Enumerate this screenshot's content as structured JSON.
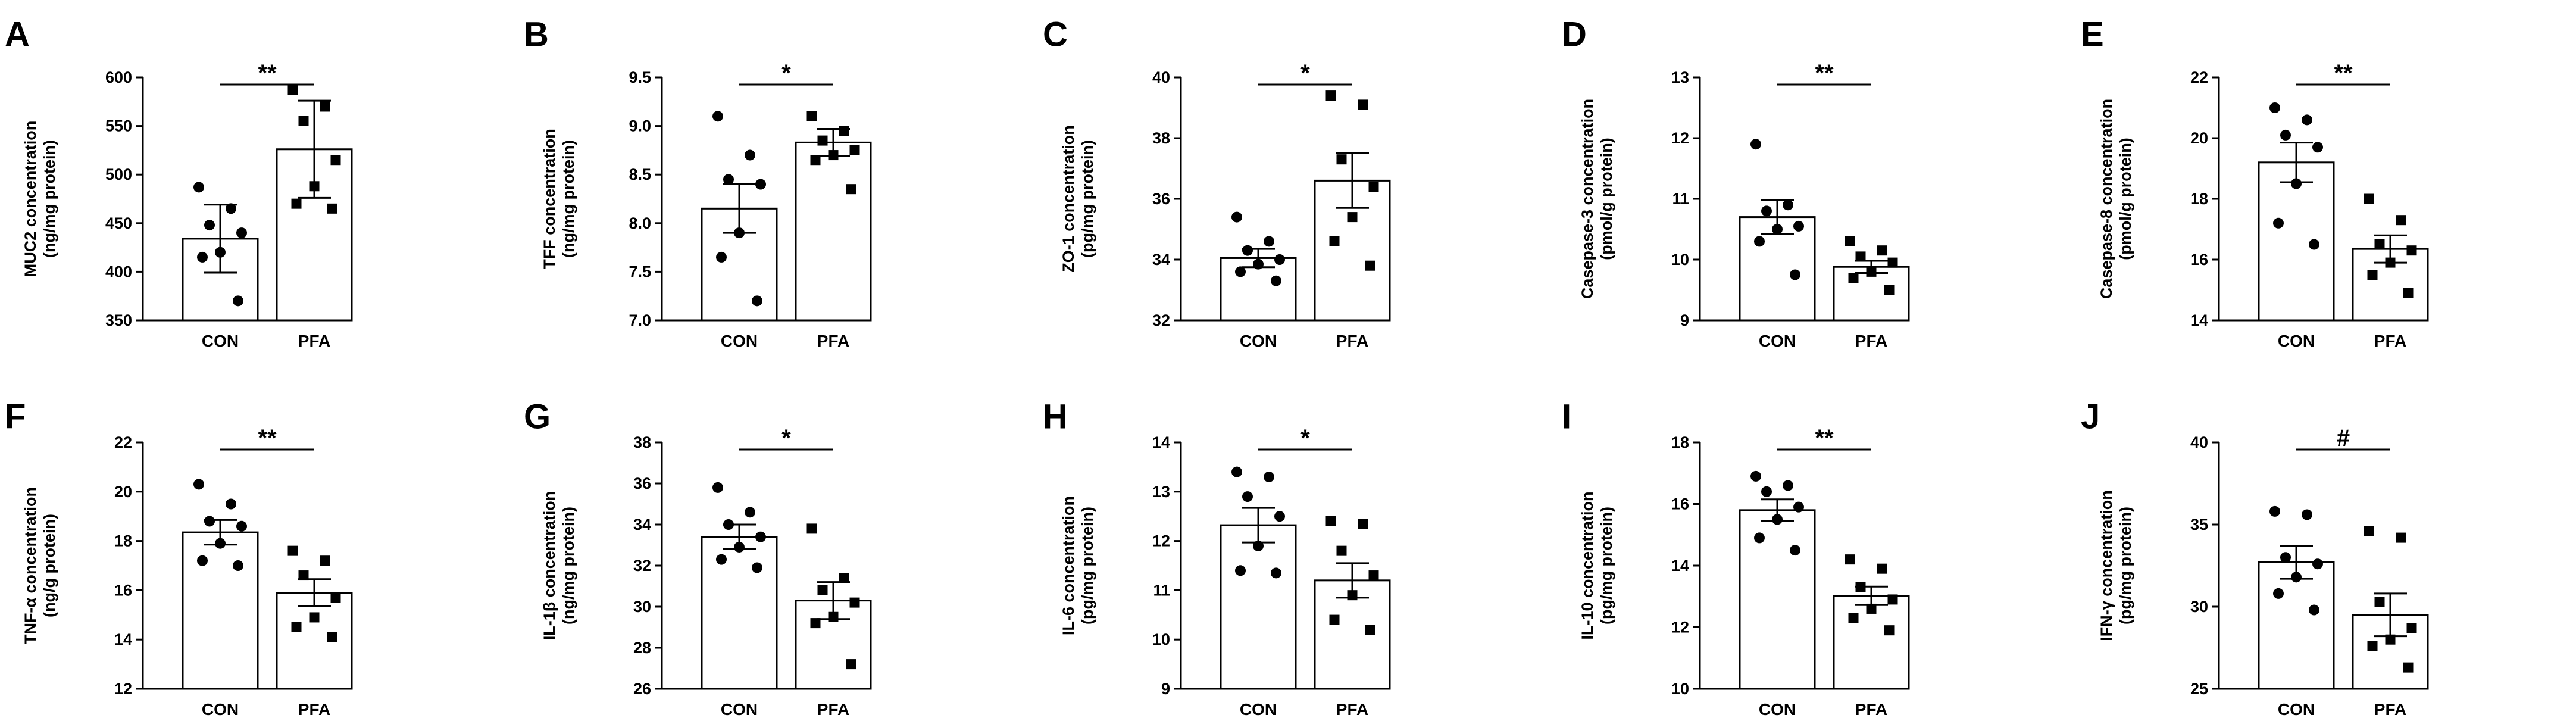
{
  "figure": {
    "colors": {
      "bar_fill": "#ffffff",
      "stroke": "#000000",
      "point": "#000000"
    }
  },
  "chart_data": [
    {
      "type": "bar",
      "letter": "A",
      "ylabel_lines": [
        "MUC2 concentration",
        "(ng/mg protein)"
      ],
      "ylim": [
        350,
        600
      ],
      "yticks": [
        350,
        400,
        450,
        500,
        550,
        600
      ],
      "categories": [
        "CON",
        "PFA"
      ],
      "means": [
        434,
        526
      ],
      "sem": [
        35,
        50
      ],
      "points": [
        [
          487,
          465,
          448,
          440,
          420,
          415,
          370
        ],
        [
          587,
          570,
          555,
          515,
          488,
          470,
          465
        ]
      ],
      "significance": "**"
    },
    {
      "type": "bar",
      "letter": "B",
      "ylabel_lines": [
        "TFF concentration",
        "(ng/mg protein)"
      ],
      "ylim": [
        7.0,
        9.5
      ],
      "yticks": [
        "7.0",
        "7.5",
        "8.0",
        "8.5",
        "9.0",
        "9.5"
      ],
      "categories": [
        "CON",
        "PFA"
      ],
      "means": [
        8.15,
        8.83
      ],
      "sem": [
        0.25,
        0.14
      ],
      "points": [
        [
          9.1,
          8.7,
          8.45,
          8.4,
          7.9,
          7.65,
          7.2
        ],
        [
          9.1,
          8.95,
          8.85,
          8.75,
          8.7,
          8.65,
          8.35
        ]
      ],
      "significance": "*"
    },
    {
      "type": "bar",
      "letter": "C",
      "ylabel_lines": [
        "ZO-1 concentration",
        "(pg/mg protein)"
      ],
      "ylim": [
        32,
        40
      ],
      "yticks": [
        32,
        34,
        36,
        38,
        40
      ],
      "categories": [
        "CON",
        "PFA"
      ],
      "means": [
        34.05,
        36.6
      ],
      "sem": [
        0.3,
        0.9
      ],
      "points": [
        [
          35.4,
          34.6,
          34.3,
          34.0,
          33.85,
          33.6,
          33.3
        ],
        [
          39.4,
          39.1,
          37.3,
          36.4,
          35.4,
          34.6,
          33.8
        ]
      ],
      "significance": "*"
    },
    {
      "type": "bar",
      "letter": "D",
      "ylabel_lines": [
        "Casepase-3 concentration",
        "(pmol/g protein)"
      ],
      "ylim": [
        9,
        13
      ],
      "yticks": [
        9,
        10,
        11,
        12,
        13
      ],
      "categories": [
        "CON",
        "PFA"
      ],
      "means": [
        10.7,
        9.88
      ],
      "sem": [
        0.28,
        0.1
      ],
      "points": [
        [
          11.9,
          10.9,
          10.8,
          10.55,
          10.5,
          10.3,
          9.75
        ],
        [
          10.3,
          10.15,
          10.05,
          9.95,
          9.8,
          9.7,
          9.5
        ]
      ],
      "significance": "**"
    },
    {
      "type": "bar",
      "letter": "E",
      "ylabel_lines": [
        "Casepase-8 concentration",
        "(pmol/g protein)"
      ],
      "ylim": [
        14,
        22
      ],
      "yticks": [
        14,
        16,
        18,
        20,
        22
      ],
      "categories": [
        "CON",
        "PFA"
      ],
      "means": [
        19.2,
        16.35
      ],
      "sem": [
        0.65,
        0.45
      ],
      "points": [
        [
          21.0,
          20.6,
          20.1,
          19.7,
          18.5,
          17.2,
          16.5
        ],
        [
          18.0,
          17.3,
          16.5,
          16.3,
          15.9,
          15.5,
          14.9
        ]
      ],
      "significance": "**"
    },
    {
      "type": "bar",
      "letter": "F",
      "ylabel_lines": [
        "TNF-α concentration",
        "(ng/g protein)"
      ],
      "ylim": [
        12,
        22
      ],
      "yticks": [
        12,
        14,
        16,
        18,
        20,
        22
      ],
      "categories": [
        "CON",
        "PFA"
      ],
      "means": [
        18.35,
        15.9
      ],
      "sem": [
        0.5,
        0.55
      ],
      "points": [
        [
          20.3,
          19.5,
          18.8,
          18.6,
          17.9,
          17.2,
          17.0
        ],
        [
          17.6,
          17.2,
          16.6,
          15.7,
          14.9,
          14.5,
          14.1
        ]
      ],
      "significance": "**"
    },
    {
      "type": "bar",
      "letter": "G",
      "ylabel_lines": [
        "IL-1β concentration",
        "(ng/mg protein)"
      ],
      "ylim": [
        26,
        38
      ],
      "yticks": [
        26,
        28,
        30,
        32,
        34,
        36,
        38
      ],
      "categories": [
        "CON",
        "PFA"
      ],
      "means": [
        33.4,
        30.3
      ],
      "sem": [
        0.6,
        0.9
      ],
      "points": [
        [
          35.8,
          34.6,
          34.0,
          33.4,
          32.9,
          32.3,
          31.9
        ],
        [
          33.8,
          31.4,
          30.8,
          30.2,
          29.5,
          29.2,
          27.2
        ]
      ],
      "significance": "*"
    },
    {
      "type": "bar",
      "letter": "H",
      "ylabel_lines": [
        "IL-6 concentration",
        "(pg/mg protein)"
      ],
      "ylim": [
        9,
        14
      ],
      "yticks": [
        9,
        10,
        11,
        12,
        13,
        14
      ],
      "categories": [
        "CON",
        "PFA"
      ],
      "means": [
        12.32,
        11.2
      ],
      "sem": [
        0.35,
        0.35
      ],
      "points": [
        [
          13.4,
          13.3,
          12.9,
          12.5,
          11.9,
          11.4,
          11.35
        ],
        [
          12.4,
          12.35,
          11.8,
          11.3,
          10.9,
          10.4,
          10.2
        ]
      ],
      "significance": "*"
    },
    {
      "type": "bar",
      "letter": "I",
      "ylabel_lines": [
        "IL-10 concentration",
        "(pg/mg protein)"
      ],
      "ylim": [
        10,
        18
      ],
      "yticks": [
        10,
        12,
        14,
        16,
        18
      ],
      "categories": [
        "CON",
        "PFA"
      ],
      "means": [
        15.8,
        13.02
      ],
      "sem": [
        0.35,
        0.3
      ],
      "points": [
        [
          16.9,
          16.6,
          16.4,
          15.9,
          15.5,
          14.9,
          14.5
        ],
        [
          14.2,
          13.9,
          13.3,
          12.9,
          12.6,
          12.3,
          11.9
        ]
      ],
      "significance": "**"
    },
    {
      "type": "bar",
      "letter": "J",
      "ylabel_lines": [
        "IFN-γ concentration",
        "(pg/mg protein)"
      ],
      "ylim": [
        25,
        40
      ],
      "yticks": [
        25,
        30,
        35,
        40
      ],
      "categories": [
        "CON",
        "PFA"
      ],
      "means": [
        32.7,
        29.5
      ],
      "sem": [
        1.0,
        1.3
      ],
      "points": [
        [
          35.8,
          35.6,
          33.0,
          32.6,
          31.8,
          30.8,
          29.8
        ],
        [
          34.6,
          34.2,
          30.3,
          28.7,
          28.0,
          27.6,
          26.3
        ]
      ],
      "significance": "#"
    }
  ]
}
